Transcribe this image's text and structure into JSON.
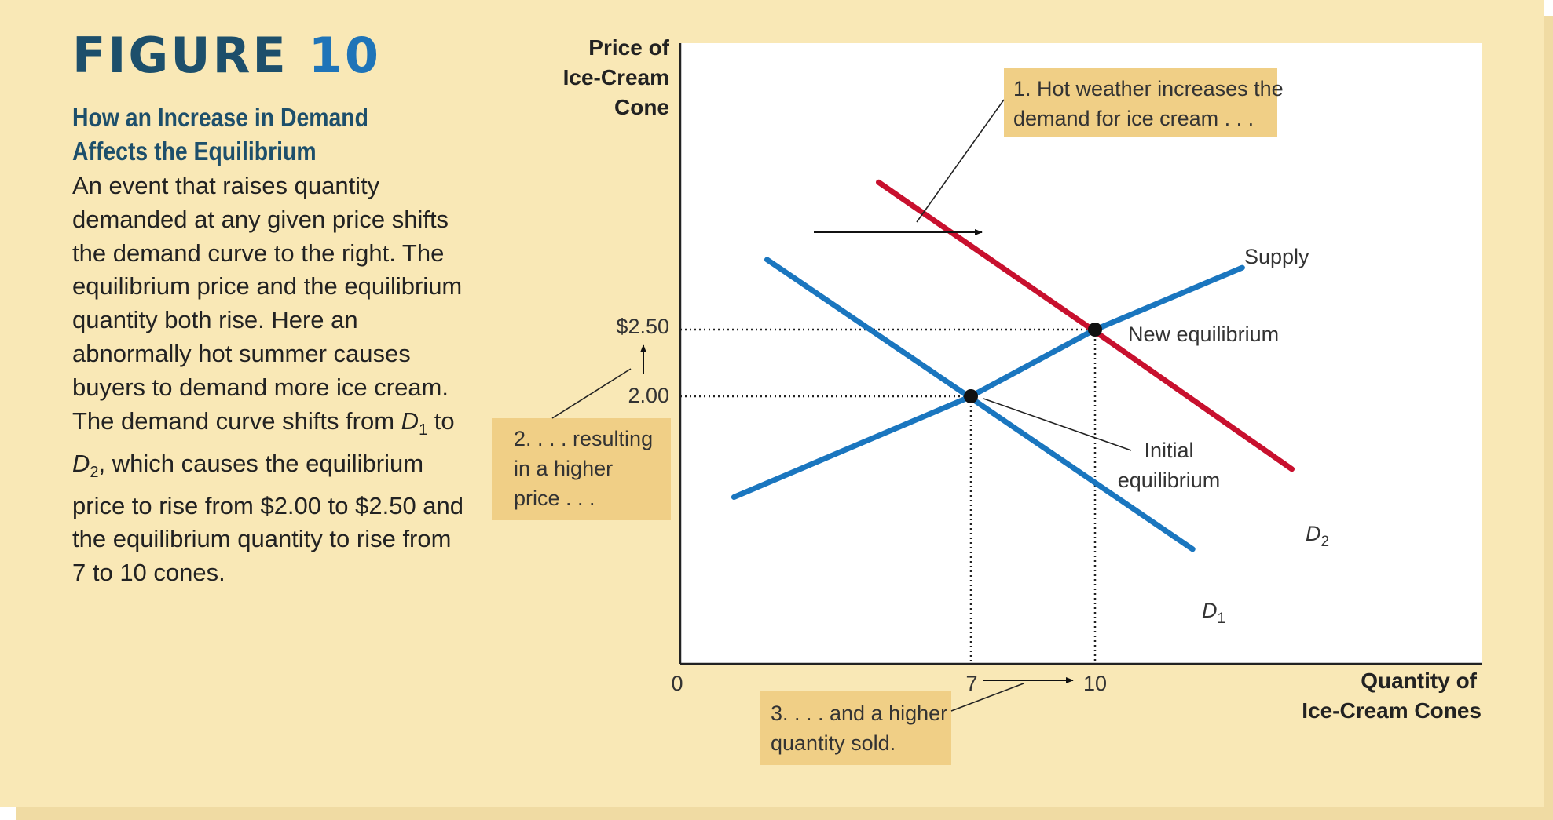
{
  "figure": {
    "label": "FIGURE",
    "number": "10",
    "title": "How an Increase in Demand Affects the Equilibrium",
    "caption_parts": [
      "An event that raises quantity demanded at any given price shifts the demand curve to the right. The equilibrium price and the equilibrium quantity both rise. Here an abnormally hot summer causes buyers to demand more ice cream. The demand curve shifts from ",
      "D",
      "1",
      " to ",
      "D",
      "2",
      ", which causes the equilibrium price to rise from $2.00 to $2.50 and the equilibrium quantity to rise from 7 to 10 cones."
    ]
  },
  "colors": {
    "panel": "#f9e8b6",
    "callout": "#f0cf86",
    "supply_demand_1": "#1a76bf",
    "demand_2": "#c8102e",
    "heading": "#1d4f6b",
    "figure_number": "#1f74b8"
  },
  "chart_data": {
    "type": "line",
    "ylabel_lines": [
      "Price of",
      "Ice-Cream",
      "Cone"
    ],
    "xlabel_lines": [
      "Quantity of",
      "Ice-Cream Cones"
    ],
    "x_ticks": [
      "0",
      "7",
      "10"
    ],
    "y_ticks": [
      "$2.50",
      "2.00"
    ],
    "series": [
      {
        "name": "Supply",
        "color": "#1a76bf",
        "points": [
          [
            1.3,
            1.25
          ],
          [
            7,
            2.0
          ],
          [
            10,
            2.5
          ],
          [
            13.6,
            2.97
          ]
        ]
      },
      {
        "name": "D",
        "sub": "1",
        "color": "#1a76bf",
        "points": [
          [
            2.1,
            3.03
          ],
          [
            7,
            2.0
          ],
          [
            12.4,
            0.86
          ]
        ]
      },
      {
        "name": "D",
        "sub": "2",
        "color": "#c8102e",
        "points": [
          [
            4.8,
            3.61
          ],
          [
            10,
            2.5
          ],
          [
            14.8,
            1.46
          ]
        ]
      }
    ],
    "equilibria": [
      {
        "name": "Initial equilibrium",
        "lines": [
          "Initial",
          "equilibrium"
        ],
        "x": 7,
        "y": 2.0
      },
      {
        "name": "New equilibrium",
        "lines": [
          "New equilibrium"
        ],
        "x": 10,
        "y": 2.5
      }
    ],
    "callouts": [
      {
        "id": "demand",
        "lines": [
          "1. Hot weather increases the",
          "demand for ice cream . . ."
        ]
      },
      {
        "id": "price",
        "lines": [
          "2. . . . resulting",
          "in a higher",
          "price . . ."
        ]
      },
      {
        "id": "quantity",
        "lines": [
          "3. . . . and a higher",
          "quantity sold."
        ]
      }
    ],
    "xlim": [
      0,
      19
    ],
    "ylim": [
      0,
      4.5
    ]
  }
}
